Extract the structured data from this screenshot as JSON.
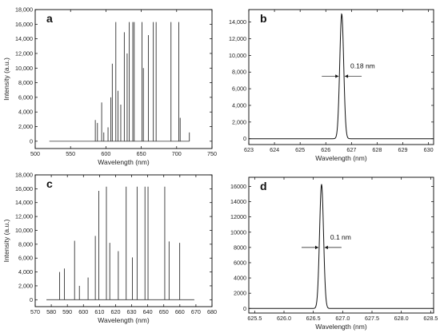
{
  "chart_data": [
    {
      "id": "a",
      "type": "line",
      "panel_label": "a",
      "xlabel": "Wavelength (nm)",
      "ylabel": "Intensity (a.u.)",
      "xlim": [
        500,
        750
      ],
      "ylim": [
        -1000,
        18000
      ],
      "xticks": [
        500,
        550,
        600,
        650,
        700,
        750
      ],
      "yticks": [
        0,
        2000,
        4000,
        6000,
        8000,
        10000,
        12000,
        14000,
        16000,
        18000
      ],
      "ytick_labels": [
        "0",
        "2,000",
        "4,000",
        "6,000",
        "8,000",
        "10,000",
        "12,000",
        "14,000",
        "16,000",
        "18,000"
      ],
      "baseline_range": [
        520,
        718
      ],
      "peaks": [
        {
          "x": 585,
          "y": 2900
        },
        {
          "x": 588,
          "y": 2500
        },
        {
          "x": 594,
          "y": 5300
        },
        {
          "x": 597,
          "y": 1200
        },
        {
          "x": 603,
          "y": 1900
        },
        {
          "x": 607,
          "y": 6000
        },
        {
          "x": 609,
          "y": 10600
        },
        {
          "x": 614,
          "y": 16300
        },
        {
          "x": 617,
          "y": 6900
        },
        {
          "x": 621,
          "y": 5000
        },
        {
          "x": 626,
          "y": 14900
        },
        {
          "x": 630,
          "y": 12000
        },
        {
          "x": 633,
          "y": 16300
        },
        {
          "x": 638,
          "y": 16300
        },
        {
          "x": 640,
          "y": 16300
        },
        {
          "x": 651,
          "y": 16300
        },
        {
          "x": 653,
          "y": 10000
        },
        {
          "x": 660,
          "y": 14500
        },
        {
          "x": 667,
          "y": 16300
        },
        {
          "x": 671,
          "y": 16300
        },
        {
          "x": 692,
          "y": 16300
        },
        {
          "x": 703,
          "y": 16300
        },
        {
          "x": 705,
          "y": 3200
        },
        {
          "x": 718,
          "y": 1200
        }
      ]
    },
    {
      "id": "b",
      "type": "line",
      "panel_label": "b",
      "xlabel": "Wavelength (nm)",
      "ylabel": "",
      "xlim": [
        623,
        630.2
      ],
      "ylim": [
        -700,
        15500
      ],
      "xticks": [
        623,
        624,
        625,
        626,
        627,
        628,
        629,
        630
      ],
      "yticks": [
        0,
        2000,
        4000,
        6000,
        8000,
        10000,
        12000,
        14000
      ],
      "ytick_labels": [
        "0",
        "2,000",
        "4,000",
        "6,000",
        "8,000",
        "10,000",
        "12,000",
        "14,000"
      ],
      "center": 626.62,
      "amplitude": 15000,
      "sigma": 0.077,
      "annotation": {
        "text": "0.18 nm",
        "y": 7500
      }
    },
    {
      "id": "c",
      "type": "line",
      "panel_label": "c",
      "xlabel": "Wavelength (nm)",
      "ylabel": "Intensity (a.u.)",
      "xlim": [
        570,
        680
      ],
      "ylim": [
        -1000,
        18000
      ],
      "xticks": [
        570,
        580,
        590,
        600,
        610,
        620,
        630,
        640,
        650,
        660,
        670,
        680
      ],
      "yticks": [
        0,
        2000,
        4000,
        6000,
        8000,
        10000,
        12000,
        14000,
        16000,
        18000
      ],
      "ytick_labels": [
        "0",
        "2,000",
        "4,000",
        "6,000",
        "8,000",
        "10,000",
        "12,000",
        "14,000",
        "16,000",
        "18,000"
      ],
      "baseline_range": [
        577,
        669
      ],
      "peaks": [
        {
          "x": 585.2,
          "y": 4000
        },
        {
          "x": 588.2,
          "y": 4500
        },
        {
          "x": 594.5,
          "y": 8500
        },
        {
          "x": 597.5,
          "y": 2000
        },
        {
          "x": 602.9,
          "y": 3200
        },
        {
          "x": 607.4,
          "y": 9200
        },
        {
          "x": 609.6,
          "y": 15700
        },
        {
          "x": 614.3,
          "y": 16300
        },
        {
          "x": 616.4,
          "y": 8200
        },
        {
          "x": 621.7,
          "y": 7000
        },
        {
          "x": 626.6,
          "y": 16300
        },
        {
          "x": 630.5,
          "y": 6100
        },
        {
          "x": 633.4,
          "y": 16300
        },
        {
          "x": 638.3,
          "y": 16300
        },
        {
          "x": 640.2,
          "y": 16300
        },
        {
          "x": 650.6,
          "y": 16300
        },
        {
          "x": 653.3,
          "y": 8400
        },
        {
          "x": 659.9,
          "y": 8200
        }
      ]
    },
    {
      "id": "d",
      "type": "line",
      "panel_label": "d",
      "xlabel": "Wavelength (nm)",
      "ylabel": "",
      "xlim": [
        625.4,
        628.55
      ],
      "ylim": [
        -600,
        17200
      ],
      "xticks": [
        625.5,
        626.0,
        626.5,
        627.0,
        627.5,
        628.0,
        628.5
      ],
      "xtick_labels": [
        "625.5",
        "626.0",
        "626.5",
        "627.0",
        "627.5",
        "628.0",
        "628.5"
      ],
      "yticks": [
        0,
        2000,
        4000,
        6000,
        8000,
        10000,
        12000,
        14000,
        16000
      ],
      "ytick_labels": [
        "0",
        "2000",
        "4000",
        "6000",
        "8000",
        "10000",
        "12000",
        "14000",
        "16000"
      ],
      "center": 626.64,
      "amplitude": 16300,
      "sigma": 0.034,
      "annotation": {
        "text": "0.1 nm",
        "y": 8000
      }
    }
  ]
}
